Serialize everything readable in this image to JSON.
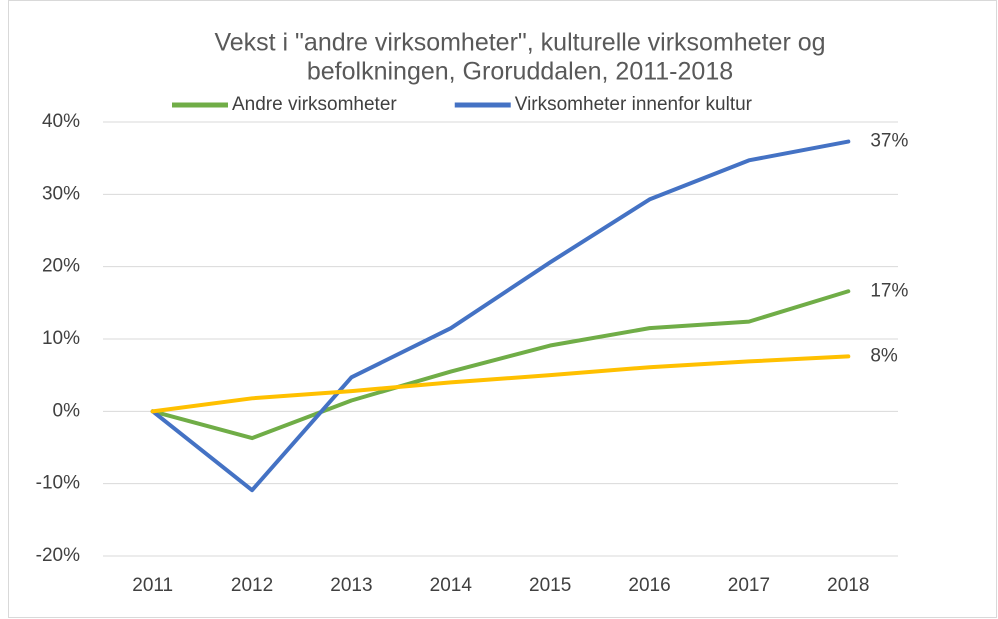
{
  "chart_data": {
    "type": "line",
    "title": [
      "Vekst i \"andre virksomheter\", kulturelle virksomheter og",
      "befolkningen, Groruddalen, 2011-2018"
    ],
    "categories": [
      "2011",
      "2012",
      "2013",
      "2014",
      "2015",
      "2016",
      "2017",
      "2018"
    ],
    "series": [
      {
        "name": "Andre virksomheter",
        "color": "#70ad47",
        "values": [
          0,
          -3.7,
          1.5,
          5.5,
          9.1,
          11.5,
          12.4,
          16.6
        ],
        "value_labels": [
          null,
          null,
          null,
          null,
          null,
          null,
          null,
          "17%"
        ]
      },
      {
        "name": "Virksomheter innenfor kultur",
        "color": "#4472c4",
        "values": [
          0,
          -10.9,
          4.7,
          11.5,
          20.6,
          29.3,
          34.7,
          37.3
        ],
        "value_labels": [
          null,
          null,
          null,
          null,
          null,
          null,
          null,
          "37%"
        ]
      },
      {
        "color": "#ffc000",
        "values": [
          0,
          1.8,
          2.8,
          4.0,
          5.0,
          6.1,
          6.9,
          7.6
        ],
        "value_labels": [
          null,
          null,
          null,
          null,
          null,
          null,
          null,
          "8%"
        ]
      }
    ],
    "ylim": [
      -20,
      40
    ],
    "yticks": [
      {
        "value": -20,
        "label": "-20%"
      },
      {
        "value": -10,
        "label": "-10%"
      },
      {
        "value": 0,
        "label": "0%"
      },
      {
        "value": 10,
        "label": "10%"
      },
      {
        "value": 20,
        "label": "20%"
      },
      {
        "value": 30,
        "label": "30%"
      },
      {
        "value": 40,
        "label": "40%"
      }
    ],
    "grid": true,
    "legend": "top"
  }
}
